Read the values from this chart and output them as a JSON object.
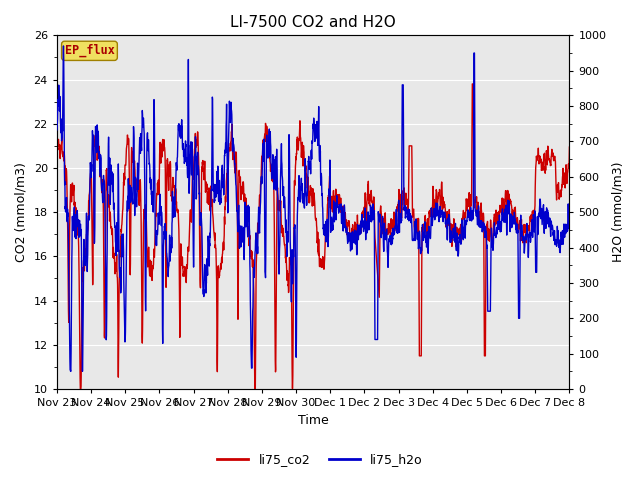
{
  "title": "LI-7500 CO2 and H2O",
  "xlabel": "Time",
  "ylabel_left": "CO2 (mmol/m3)",
  "ylabel_right": "H2O (mmol/m3)",
  "legend_label1": "li75_co2",
  "legend_label2": "li75_h2o",
  "watermark": "EP_flux",
  "co2_color": "#cc0000",
  "h2o_color": "#0000cc",
  "ylim_left": [
    10,
    26
  ],
  "ylim_right": [
    0,
    1000
  ],
  "yticks_left": [
    10,
    12,
    14,
    16,
    18,
    20,
    22,
    24,
    26
  ],
  "yticks_right": [
    0,
    100,
    200,
    300,
    400,
    500,
    600,
    700,
    800,
    900,
    1000
  ],
  "fig_bg_color": "#ffffff",
  "plot_bg_color": "#e8e8e8",
  "grid_color": "#ffffff",
  "title_fontsize": 11,
  "axis_label_fontsize": 9,
  "tick_fontsize": 8,
  "line_width": 1.0,
  "num_days": 15,
  "points_per_day": 144,
  "seed": 42,
  "tick_positions": [
    0,
    1,
    2,
    3,
    4,
    5,
    6,
    7,
    8,
    9,
    10,
    11,
    12,
    13,
    14,
    15
  ],
  "tick_labels": [
    "Nov 23",
    "Nov 24",
    "Nov 25",
    "Nov 26",
    "Nov 27",
    "Nov 28",
    "Nov 29",
    "Nov 30",
    "Dec 1",
    "Dec 2",
    "Dec 3",
    "Dec 4",
    "Dec 5",
    "Dec 6",
    "Dec 7",
    "Dec 8"
  ]
}
